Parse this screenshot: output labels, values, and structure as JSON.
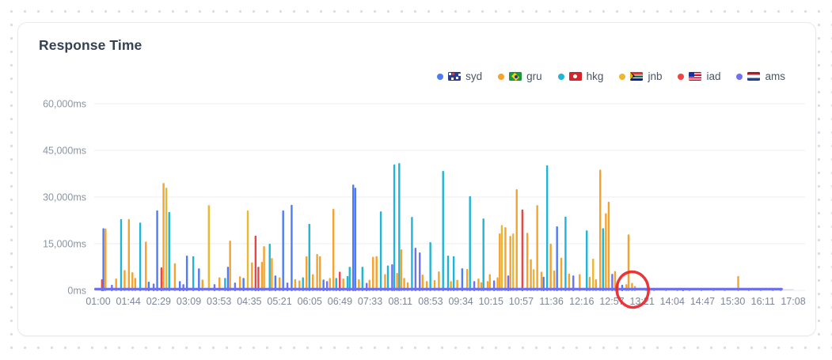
{
  "card": {
    "title": "Response Time"
  },
  "legend": {
    "items": [
      {
        "label": "syd",
        "color": "#4e7cf6",
        "flag_icon": "flag-au"
      },
      {
        "label": "gru",
        "color": "#f5a32c",
        "flag_icon": "flag-br"
      },
      {
        "label": "hkg",
        "color": "#1fb5d8",
        "flag_icon": "flag-hk"
      },
      {
        "label": "jnb",
        "color": "#ecb82e",
        "flag_icon": "flag-za"
      },
      {
        "label": "iad",
        "color": "#ee4444",
        "flag_icon": "flag-us"
      },
      {
        "label": "ams",
        "color": "#6e72ee",
        "flag_icon": "flag-nl"
      }
    ]
  },
  "chart_data": {
    "type": "bar",
    "title": "Response Time",
    "xlabel": "",
    "ylabel": "",
    "ylim": [
      0,
      60000
    ],
    "grid": true,
    "legend_position": "top-right",
    "y_ticks": [
      "0ms",
      "15,000ms",
      "30,000ms",
      "45,000ms",
      "60,000ms"
    ],
    "y_tick_values": [
      0,
      15000,
      30000,
      45000,
      60000
    ],
    "categories": [
      "01:00",
      "01:44",
      "02:29",
      "03:09",
      "03:53",
      "04:35",
      "05:21",
      "06:05",
      "06:49",
      "07:33",
      "08:11",
      "08:53",
      "09:34",
      "10:15",
      "10:57",
      "11:36",
      "12:16",
      "12:57",
      "13:21",
      "14:04",
      "14:47",
      "15:30",
      "16:11",
      "17:08"
    ],
    "series_colors": {
      "syd": "#4e7cf6",
      "gru": "#f5a32c",
      "hkg": "#1fb5d8",
      "jnb": "#ecb82e",
      "iad": "#ee4444",
      "ams": "#6e72ee"
    },
    "baseline_series": "ams",
    "baseline_ms": 700,
    "baseline_span": [
      0,
      0.973
    ],
    "annotation": {
      "shape": "ellipse",
      "color": "#e8252a",
      "at_category": "13:21"
    },
    "spikes": [
      [
        0.011,
        "iad",
        3600
      ],
      [
        0.013,
        "syd",
        20000
      ],
      [
        0.016,
        "gru",
        19900
      ],
      [
        0.025,
        "ams",
        1800
      ],
      [
        0.031,
        "gru",
        3800
      ],
      [
        0.038,
        "hkg",
        22900
      ],
      [
        0.043,
        "gru",
        6500
      ],
      [
        0.049,
        "gru",
        22900
      ],
      [
        0.054,
        "gru",
        5800
      ],
      [
        0.058,
        "gru",
        4000
      ],
      [
        0.065,
        "hkg",
        21800
      ],
      [
        0.073,
        "gru",
        15700
      ],
      [
        0.077,
        "syd",
        2800
      ],
      [
        0.084,
        "ams",
        2200
      ],
      [
        0.089,
        "syd",
        25700
      ],
      [
        0.095,
        "iad",
        7400
      ],
      [
        0.098,
        "gru",
        34500
      ],
      [
        0.102,
        "jnb",
        33000
      ],
      [
        0.106,
        "hkg",
        25200
      ],
      [
        0.114,
        "gru",
        8700
      ],
      [
        0.121,
        "syd",
        3000
      ],
      [
        0.126,
        "ams",
        2000
      ],
      [
        0.131,
        "syd",
        11200
      ],
      [
        0.14,
        "hkg",
        11000
      ],
      [
        0.148,
        "syd",
        7100
      ],
      [
        0.153,
        "gru",
        3500
      ],
      [
        0.162,
        "jnb",
        27400
      ],
      [
        0.17,
        "ams",
        2000
      ],
      [
        0.177,
        "gru",
        4200
      ],
      [
        0.185,
        "hkg",
        4000
      ],
      [
        0.189,
        "syd",
        7600
      ],
      [
        0.192,
        "gru",
        16000
      ],
      [
        0.199,
        "ams",
        2500
      ],
      [
        0.206,
        "gru",
        4500
      ],
      [
        0.211,
        "syd",
        4000
      ],
      [
        0.217,
        "jnb",
        25700
      ],
      [
        0.223,
        "gru",
        9000
      ],
      [
        0.228,
        "iad",
        17600
      ],
      [
        0.232,
        "iad",
        7600
      ],
      [
        0.237,
        "gru",
        9200
      ],
      [
        0.24,
        "gru",
        14200
      ],
      [
        0.248,
        "hkg",
        15000
      ],
      [
        0.251,
        "gru",
        10400
      ],
      [
        0.256,
        "syd",
        4800
      ],
      [
        0.262,
        "gru",
        4200
      ],
      [
        0.267,
        "syd",
        25700
      ],
      [
        0.273,
        "ams",
        2500
      ],
      [
        0.279,
        "syd",
        27500
      ],
      [
        0.284,
        "gru",
        3600
      ],
      [
        0.29,
        "gru",
        3200
      ],
      [
        0.295,
        "hkg",
        4200
      ],
      [
        0.3,
        "gru",
        11000
      ],
      [
        0.304,
        "hkg",
        21400
      ],
      [
        0.309,
        "gru",
        5200
      ],
      [
        0.315,
        "gru",
        11700
      ],
      [
        0.319,
        "gru",
        11000
      ],
      [
        0.324,
        "syd",
        3500
      ],
      [
        0.329,
        "ams",
        3000
      ],
      [
        0.333,
        "gru",
        4000
      ],
      [
        0.338,
        "gru",
        26200
      ],
      [
        0.342,
        "hkg",
        4000
      ],
      [
        0.347,
        "iad",
        6000
      ],
      [
        0.352,
        "gru",
        3800
      ],
      [
        0.358,
        "hkg",
        4600
      ],
      [
        0.361,
        "hkg",
        7600
      ],
      [
        0.366,
        "syd",
        34000
      ],
      [
        0.369,
        "syd",
        33000
      ],
      [
        0.374,
        "gru",
        3600
      ],
      [
        0.379,
        "hkg",
        7600
      ],
      [
        0.385,
        "ams",
        2400
      ],
      [
        0.389,
        "gru",
        3400
      ],
      [
        0.394,
        "gru",
        10800
      ],
      [
        0.399,
        "gru",
        11000
      ],
      [
        0.405,
        "hkg",
        25400
      ],
      [
        0.411,
        "gru",
        5200
      ],
      [
        0.415,
        "hkg",
        8000
      ],
      [
        0.421,
        "ams",
        8400
      ],
      [
        0.424,
        "hkg",
        40500
      ],
      [
        0.428,
        "gru",
        5600
      ],
      [
        0.431,
        "hkg",
        40900
      ],
      [
        0.434,
        "gru",
        13200
      ],
      [
        0.438,
        "gru",
        4000
      ],
      [
        0.443,
        "gru",
        2600
      ],
      [
        0.449,
        "hkg",
        23600
      ],
      [
        0.454,
        "ams",
        13700
      ],
      [
        0.46,
        "ams",
        12200
      ],
      [
        0.464,
        "gru",
        5100
      ],
      [
        0.47,
        "gru",
        3000
      ],
      [
        0.475,
        "hkg",
        15500
      ],
      [
        0.481,
        "gru",
        3300
      ],
      [
        0.487,
        "gru",
        6100
      ],
      [
        0.493,
        "hkg",
        38400
      ],
      [
        0.5,
        "hkg",
        11200
      ],
      [
        0.504,
        "gru",
        3000
      ],
      [
        0.508,
        "hkg",
        11000
      ],
      [
        0.513,
        "gru",
        3400
      ],
      [
        0.52,
        "syd",
        7100
      ],
      [
        0.527,
        "gru",
        6900
      ],
      [
        0.531,
        "hkg",
        30300
      ],
      [
        0.537,
        "ams",
        3000
      ],
      [
        0.543,
        "gru",
        3800
      ],
      [
        0.547,
        "gru",
        2600
      ],
      [
        0.55,
        "hkg",
        23100
      ],
      [
        0.556,
        "gru",
        3000
      ],
      [
        0.559,
        "gru",
        5200
      ],
      [
        0.565,
        "ams",
        3200
      ],
      [
        0.57,
        "gru",
        4200
      ],
      [
        0.573,
        "gru",
        18300
      ],
      [
        0.576,
        "jnb",
        21000
      ],
      [
        0.581,
        "gru",
        20300
      ],
      [
        0.585,
        "ams",
        4800
      ],
      [
        0.588,
        "gru",
        17500
      ],
      [
        0.592,
        "jnb",
        18300
      ],
      [
        0.597,
        "gru",
        32500
      ],
      [
        0.605,
        "iad",
        26000
      ],
      [
        0.612,
        "gru",
        18500
      ],
      [
        0.617,
        "gru",
        10000
      ],
      [
        0.621,
        "jnb",
        6800
      ],
      [
        0.626,
        "gru",
        27400
      ],
      [
        0.632,
        "gru",
        6000
      ],
      [
        0.635,
        "syd",
        4400
      ],
      [
        0.64,
        "hkg",
        40200
      ],
      [
        0.645,
        "gru",
        15000
      ],
      [
        0.65,
        "gru",
        6400
      ],
      [
        0.654,
        "syd",
        20600
      ],
      [
        0.66,
        "gru",
        10500
      ],
      [
        0.666,
        "hkg",
        23700
      ],
      [
        0.671,
        "gru",
        5400
      ],
      [
        0.677,
        "ams",
        4800
      ],
      [
        0.686,
        "gru",
        5200
      ],
      [
        0.696,
        "hkg",
        19300
      ],
      [
        0.7,
        "gru",
        4400
      ],
      [
        0.705,
        "jnb",
        10200
      ],
      [
        0.709,
        "gru",
        3600
      ],
      [
        0.715,
        "gru",
        38800
      ],
      [
        0.719,
        "hkg",
        20000
      ],
      [
        0.723,
        "gru",
        24800
      ],
      [
        0.727,
        "gru",
        28500
      ],
      [
        0.732,
        "ams",
        5300
      ],
      [
        0.736,
        "gru",
        6200
      ],
      [
        0.74,
        "gru",
        2600
      ],
      [
        0.746,
        "syd",
        1800
      ],
      [
        0.752,
        "gru",
        2000
      ],
      [
        0.755,
        "gru",
        18000
      ],
      [
        0.76,
        "gru",
        2400
      ],
      [
        0.764,
        "gru",
        1400
      ],
      [
        0.78,
        "gru",
        600
      ],
      [
        0.791,
        "gru",
        500
      ],
      [
        0.808,
        "gru",
        600
      ],
      [
        0.824,
        "gru",
        500
      ],
      [
        0.832,
        "syd",
        700
      ],
      [
        0.841,
        "gru",
        500
      ],
      [
        0.858,
        "gru",
        600
      ],
      [
        0.875,
        "gru",
        500
      ],
      [
        0.891,
        "gru",
        600
      ],
      [
        0.91,
        "gru",
        4600
      ],
      [
        0.925,
        "gru",
        600
      ],
      [
        0.942,
        "gru",
        500
      ],
      [
        0.959,
        "gru",
        700
      ],
      [
        0.97,
        "gru",
        500
      ]
    ]
  }
}
